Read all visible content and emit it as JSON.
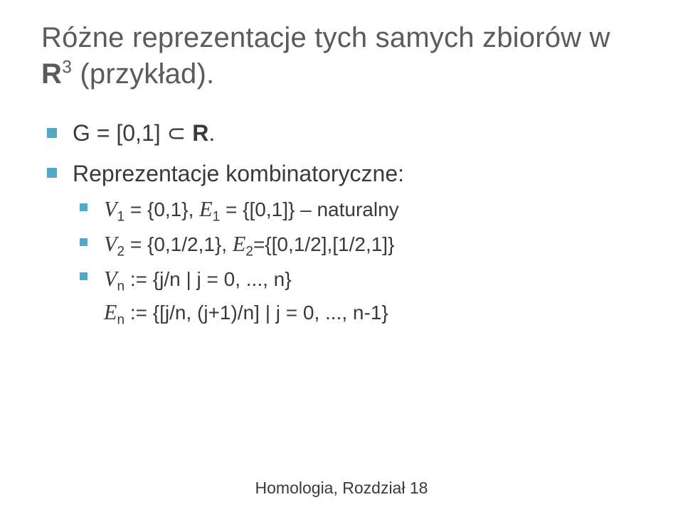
{
  "title": {
    "pre": "Różne reprezentacje tych samych zbiorów w ",
    "bold": "R",
    "sup": "3",
    "post": " (przykład)."
  },
  "items": [
    {
      "pre": "G = [0,1] ",
      "subset": "⊂",
      "post_bold": " R",
      "tail": "."
    },
    {
      "text": "Reprezentacje kombinatoryczne:",
      "children": [
        {
          "V": "V",
          "Vsub": "1",
          "mid1": " = {0,1}, ",
          "E": "E",
          "Esub": "1",
          "tail": " = {[0,1]} – naturalny"
        },
        {
          "V": "V",
          "Vsub": "2",
          "mid1": " = {0,1/2,1}, ",
          "E": "E",
          "Esub": "2",
          "tail": "={[0,1/2],[1/2,1]}"
        },
        {
          "V": "V",
          "Vsub": "n",
          "mid1": " := {j/n | j = 0, ..., n}",
          "br": true,
          "E": "E",
          "Esub": "n",
          "tail": " := {[j/n, (j+1)/n] | j = 0, ..., n-1}"
        }
      ]
    }
  ],
  "footer": {
    "label": "Homologia, Rozdział 1",
    "page": "8"
  },
  "colors": {
    "bullet": "#51a9c6",
    "text": "#3a3a3a",
    "title": "#5b5b5b",
    "bg": "#ffffff"
  },
  "typography": {
    "title_fontsize": 40,
    "item_fontsize": 32,
    "nested_fontsize": 28,
    "footer_fontsize": 23
  }
}
